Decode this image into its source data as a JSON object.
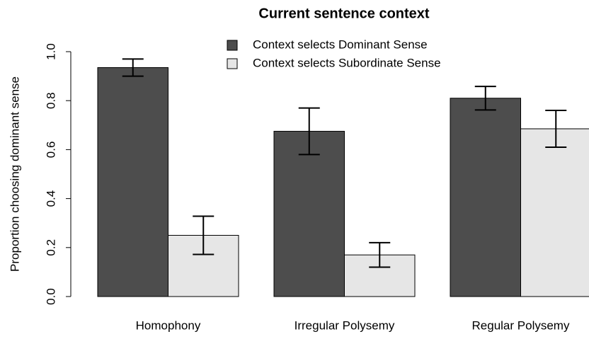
{
  "chart_data": {
    "type": "bar",
    "title": "Current sentence context",
    "y_label": "Proportion choosing dominant sense",
    "categories": [
      "Homophony",
      "Irregular Polysemy",
      "Regular Polysemy"
    ],
    "series": [
      {
        "name": "Context selects Dominant Sense",
        "color": "#4d4d4d",
        "values": [
          0.935,
          0.675,
          0.81
        ],
        "errors": [
          0.035,
          0.095,
          0.048
        ]
      },
      {
        "name": "Context selects Subordinate Sense",
        "color": "#e6e6e6",
        "values": [
          0.25,
          0.17,
          0.685
        ],
        "errors": [
          0.078,
          0.05,
          0.075
        ]
      }
    ],
    "ylim": [
      0,
      1
    ],
    "yticks": [
      {
        "value": 0,
        "label": "0.0"
      },
      0.2,
      0.4,
      0.6,
      0.8,
      {
        "value": 1,
        "label": "1.0"
      }
    ],
    "legend": "top"
  }
}
